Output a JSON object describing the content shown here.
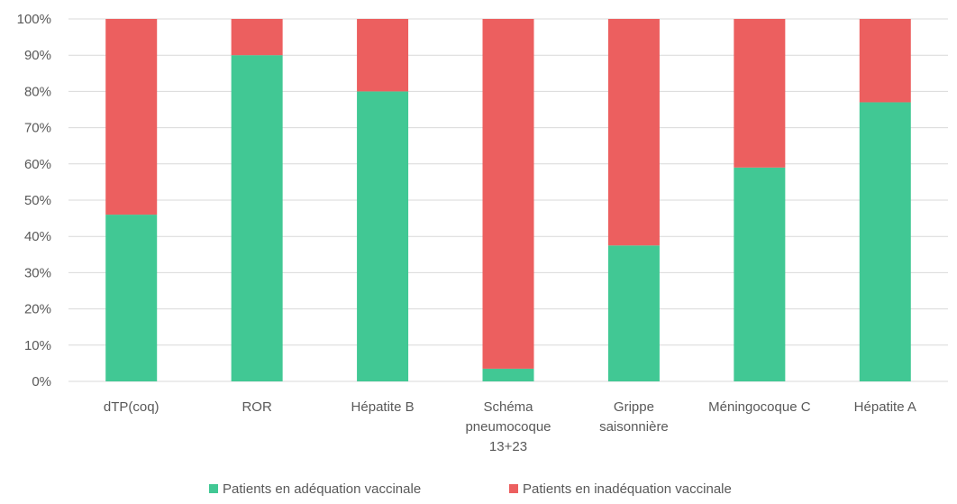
{
  "chart_data": {
    "type": "bar",
    "stacked": true,
    "percent": true,
    "categories": [
      [
        "dTP(coq)"
      ],
      [
        "ROR"
      ],
      [
        "Hépatite B"
      ],
      [
        "Schéma",
        "pneumocoque",
        "13+23"
      ],
      [
        "Grippe",
        "saisonnière"
      ],
      [
        "Méningocoque C"
      ],
      [
        "Hépatite A"
      ]
    ],
    "series": [
      {
        "name": "Patients en adéquation vaccinale",
        "color": "#41c894",
        "values": [
          46,
          90,
          80,
          3.5,
          37.5,
          59,
          77
        ]
      },
      {
        "name": "Patients en inadéquation vaccinale",
        "color": "#ec5f5f",
        "values": [
          54,
          10,
          20,
          96.5,
          62.5,
          41,
          23
        ]
      }
    ],
    "y_ticks": [
      "0%",
      "10%",
      "20%",
      "30%",
      "40%",
      "50%",
      "60%",
      "70%",
      "80%",
      "90%",
      "100%"
    ],
    "ylim": [
      0,
      100
    ],
    "grid": true,
    "legend_position": "bottom",
    "gridline_color": "#d9d9d9"
  }
}
